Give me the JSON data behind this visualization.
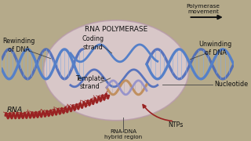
{
  "bg_color": "#b8b090",
  "labels": {
    "rna_polymerase": "RNA POLYMERASE",
    "polymerase_movement": "Polymerase\nmovement",
    "rewinding": "Rewinding\nof DNA",
    "unwinding": "Unwinding\nof DNA",
    "coding_strand": "Coding\nstrand",
    "template_strand": "Template\nstrand",
    "nucleotide": "Nucleotide",
    "ntps": "NTPs",
    "rna": "RNA",
    "rna_dna": "RNA-DNA\nhybrid region"
  },
  "colors": {
    "bg": "#b5aa8a",
    "ellipse_fill": "#e2cfd8",
    "ellipse_edge": "#b89aaa",
    "dna_blue": "#5580c8",
    "dna_blue2": "#4466bb",
    "dna_cross": "#88aadd",
    "rna_red": "#992222",
    "rna_dna_hybrid_top": "#c09060",
    "rna_dna_hybrid_bot": "#8888cc",
    "arrow_black": "#111111",
    "arrow_red": "#992222",
    "text_dark": "#111111",
    "annot_line": "#444444"
  },
  "figsize": [
    3.2,
    1.8
  ],
  "dpi": 100
}
